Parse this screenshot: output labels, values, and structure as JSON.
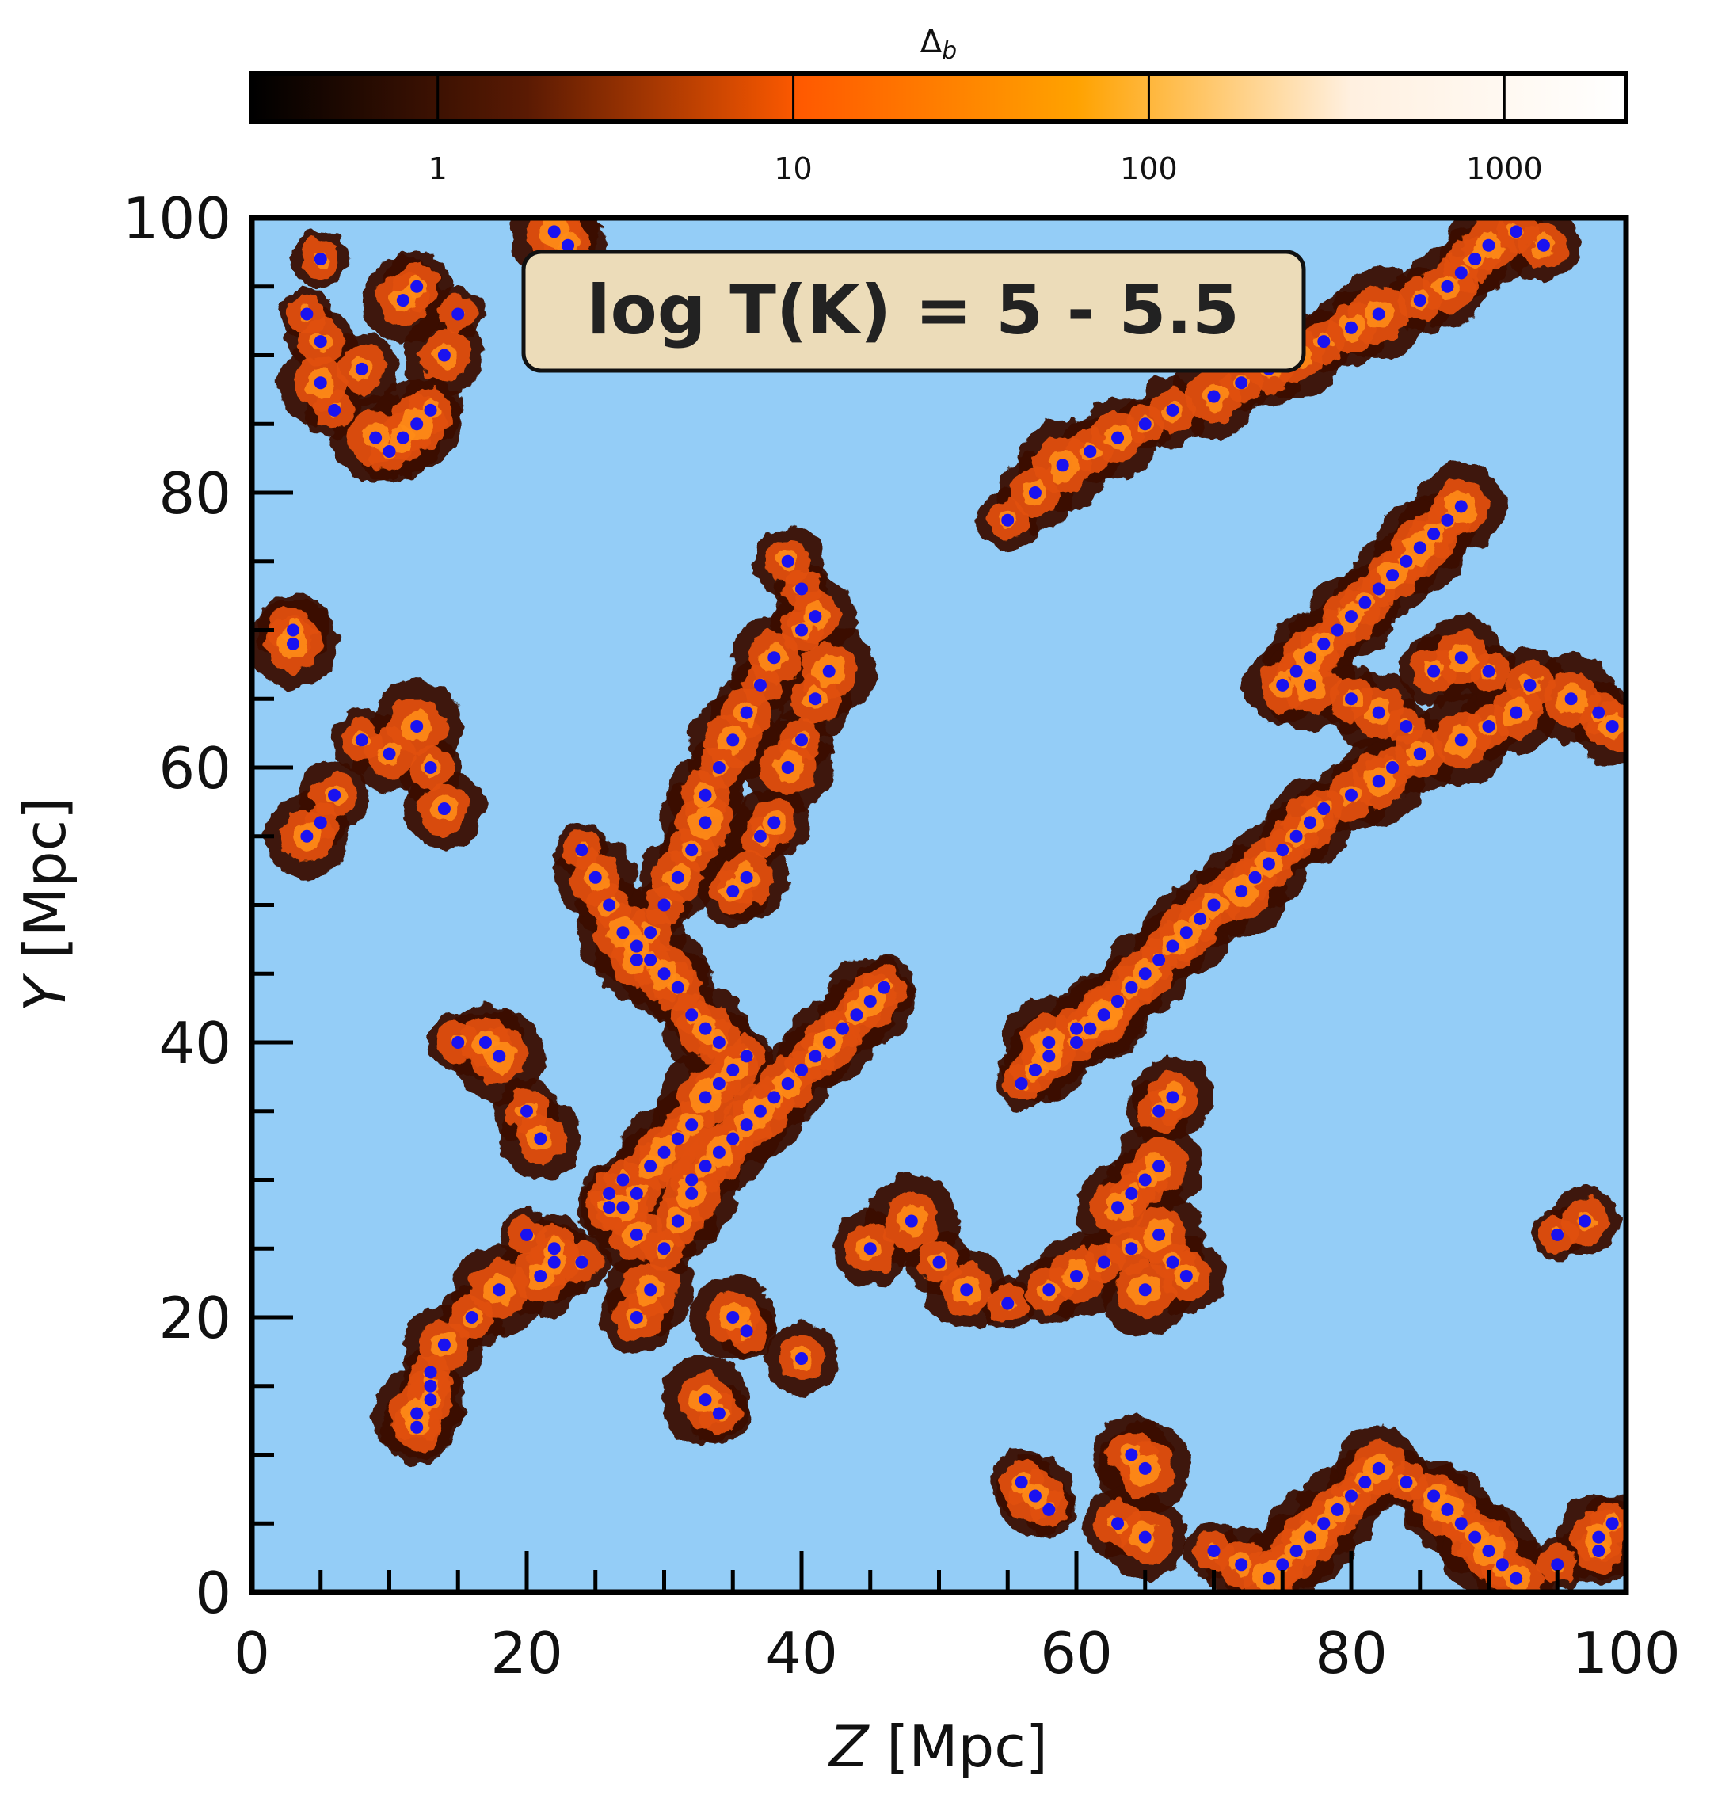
{
  "chart_data": {
    "type": "scatter",
    "title": "",
    "annotation": "log T(K) = 5 - 5.5",
    "xlabel": {
      "symbol": "Z",
      "unit": " [Mpc]"
    },
    "ylabel": {
      "symbol": "Y",
      "unit": " [Mpc]"
    },
    "xlim": [
      0,
      100
    ],
    "ylim": [
      0,
      100
    ],
    "x_ticks": [
      "0",
      "20",
      "40",
      "60",
      "80",
      "100"
    ],
    "y_ticks": [
      "0",
      "20",
      "40",
      "60",
      "80",
      "100"
    ],
    "colorbar": {
      "label_main": "Δ",
      "label_sub": "b",
      "scale": "log",
      "range": [
        0.3,
        2200
      ],
      "ticks": [
        "1",
        "10",
        "100",
        "1000"
      ],
      "tick_values": [
        1,
        10,
        100,
        1000
      ],
      "colors": [
        "#000000",
        "#5a1a03",
        "#ff5a00",
        "#ffa200",
        "#fff0e0",
        "#ffffff"
      ]
    },
    "colors": {
      "void": "#94cdf7",
      "filament_dark": "#3a1203",
      "filament_mid": "#e0500a",
      "filament_bright": "#ff8c1a",
      "marker": "#1a12f0",
      "annotation_fill": "#ecdcb9"
    },
    "series": [
      {
        "marker": "circle",
        "x": [
          4,
          5,
          5,
          6,
          8,
          9,
          10,
          11,
          12,
          13,
          14,
          15,
          12,
          11,
          5,
          3,
          3,
          8,
          10,
          12,
          13,
          14,
          5,
          6,
          4,
          13,
          12,
          12,
          15,
          17,
          18,
          20,
          21,
          27,
          28,
          27,
          26,
          29,
          30,
          31,
          32,
          33,
          34,
          35,
          36,
          34,
          33,
          32,
          31,
          30,
          29,
          28,
          27,
          26,
          25,
          24,
          35,
          36,
          37,
          38,
          39,
          40,
          41,
          42,
          40,
          41,
          40,
          39,
          38,
          37,
          36,
          35,
          34,
          33,
          33,
          32,
          31,
          30,
          29,
          28,
          32,
          33,
          34,
          35,
          36,
          37,
          38,
          39,
          40,
          41,
          42,
          43,
          44,
          45,
          46,
          22,
          18,
          16,
          14,
          13,
          13,
          21,
          24,
          28,
          29,
          30,
          31,
          32,
          26,
          28,
          20,
          22,
          35,
          36,
          40,
          33,
          34,
          45,
          48,
          50,
          52,
          55,
          58,
          60,
          62,
          64,
          66,
          55,
          57,
          59,
          61,
          63,
          65,
          67,
          70,
          72,
          74,
          76,
          78,
          80,
          82,
          85,
          87,
          88,
          89,
          90,
          92,
          94,
          88,
          87,
          86,
          85,
          84,
          83,
          82,
          81,
          80,
          79,
          78,
          77,
          76,
          75,
          77,
          80,
          82,
          84,
          86,
          88,
          90,
          93,
          96,
          98,
          99,
          58,
          60,
          62,
          63,
          64,
          65,
          66,
          67,
          68,
          69,
          70,
          72,
          73,
          74,
          75,
          76,
          77,
          78,
          80,
          82,
          83,
          85,
          88,
          90,
          92,
          95,
          97,
          63,
          64,
          65,
          66,
          67,
          68,
          65,
          66,
          67,
          56,
          57,
          58,
          60,
          61,
          62,
          63,
          64,
          65,
          56,
          57,
          58,
          63,
          65,
          70,
          72,
          74,
          75,
          76,
          77,
          78,
          79,
          80,
          81,
          82,
          84,
          86,
          87,
          88,
          89,
          90,
          91,
          92,
          95,
          98,
          98,
          99,
          23,
          22
        ],
        "y": [
          93,
          91,
          88,
          86,
          89,
          84,
          83,
          84,
          85,
          86,
          90,
          93,
          95,
          94,
          97,
          70,
          69,
          62,
          61,
          63,
          60,
          57,
          56,
          58,
          55,
          15,
          12,
          13,
          40,
          40,
          39,
          35,
          33,
          30,
          29,
          28,
          29,
          31,
          32,
          33,
          34,
          36,
          37,
          38,
          39,
          40,
          41,
          42,
          44,
          45,
          46,
          47,
          48,
          50,
          52,
          54,
          51,
          52,
          55,
          56,
          60,
          62,
          65,
          67,
          70,
          71,
          73,
          75,
          68,
          66,
          64,
          62,
          60,
          58,
          56,
          54,
          52,
          50,
          48,
          46,
          30,
          31,
          32,
          33,
          34,
          35,
          36,
          37,
          38,
          39,
          40,
          41,
          42,
          43,
          44,
          24,
          22,
          20,
          18,
          16,
          14,
          23,
          24,
          20,
          22,
          25,
          27,
          29,
          28,
          26,
          26,
          25,
          20,
          19,
          17,
          14,
          13,
          25,
          27,
          24,
          22,
          21,
          22,
          23,
          24,
          25,
          26,
          78,
          80,
          82,
          83,
          84,
          85,
          86,
          87,
          88,
          89,
          90,
          91,
          92,
          93,
          94,
          95,
          96,
          97,
          98,
          99,
          98,
          79,
          78,
          77,
          76,
          75,
          74,
          73,
          72,
          71,
          70,
          69,
          68,
          67,
          66,
          66,
          65,
          64,
          63,
          67,
          68,
          67,
          66,
          65,
          64,
          63,
          40,
          41,
          42,
          43,
          44,
          45,
          46,
          47,
          48,
          49,
          50,
          51,
          52,
          53,
          54,
          55,
          56,
          57,
          58,
          59,
          60,
          61,
          62,
          63,
          64,
          26,
          27,
          28,
          29,
          30,
          31,
          24,
          23,
          22,
          35,
          36,
          37,
          38,
          39,
          40,
          41,
          42,
          43,
          10,
          9,
          8,
          7,
          6,
          5,
          4,
          3,
          2,
          1,
          2,
          3,
          4,
          5,
          6,
          7,
          8,
          9,
          8,
          7,
          6,
          5,
          4,
          3,
          2,
          1,
          2,
          3,
          4,
          5,
          98,
          99
        ]
      }
    ]
  }
}
